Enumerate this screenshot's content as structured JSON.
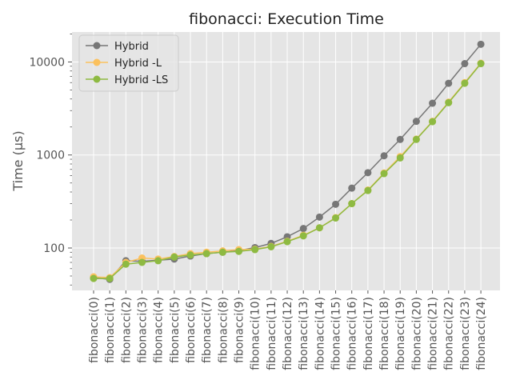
{
  "chart_data": {
    "type": "line",
    "title": "fibonacci: Execution Time",
    "xlabel": "",
    "ylabel": "Time (µs)",
    "yscale": "log",
    "ylim": [
      35,
      21000
    ],
    "grid": true,
    "legend_position": "top-left",
    "yticks": [
      {
        "value": 100,
        "label": "100"
      },
      {
        "value": 1000,
        "label": "1000"
      },
      {
        "value": 10000,
        "label": "10000"
      }
    ],
    "categories": [
      "fibonacci(0)",
      "fibonacci(1)",
      "fibonacci(2)",
      "fibonacci(3)",
      "fibonacci(4)",
      "fibonacci(5)",
      "fibonacci(6)",
      "fibonacci(7)",
      "fibonacci(8)",
      "fibonacci(9)",
      "fibonacci(10)",
      "fibonacci(11)",
      "fibonacci(12)",
      "fibonacci(13)",
      "fibonacci(14)",
      "fibonacci(15)",
      "fibonacci(16)",
      "fibonacci(17)",
      "fibonacci(18)",
      "fibonacci(19)",
      "fibonacci(20)",
      "fibonacci(21)",
      "fibonacci(22)",
      "fibonacci(23)",
      "fibonacci(24)"
    ],
    "series": [
      {
        "name": "Hybrid",
        "color": "#777777",
        "values": [
          48,
          46,
          73,
          72,
          74,
          76,
          82,
          87,
          90,
          94,
          101,
          112,
          132,
          162,
          215,
          295,
          440,
          645,
          980,
          1470,
          2300,
          3600,
          5900,
          9600,
          15500
        ]
      },
      {
        "name": "Hybrid -L",
        "color": "#FBC15E",
        "values": [
          49,
          48,
          70,
          78,
          76,
          81,
          87,
          90,
          93,
          96,
          97,
          104,
          118,
          137,
          165,
          212,
          300,
          420,
          640,
          960,
          1480,
          2300,
          3700,
          6000,
          9700
        ]
      },
      {
        "name": "Hybrid -LS",
        "color": "#8EBA42",
        "values": [
          47,
          47,
          67,
          70,
          73,
          80,
          84,
          87,
          90,
          92,
          96,
          103,
          117,
          135,
          165,
          210,
          300,
          415,
          630,
          930,
          1470,
          2280,
          3650,
          5900,
          9600
        ]
      }
    ]
  }
}
